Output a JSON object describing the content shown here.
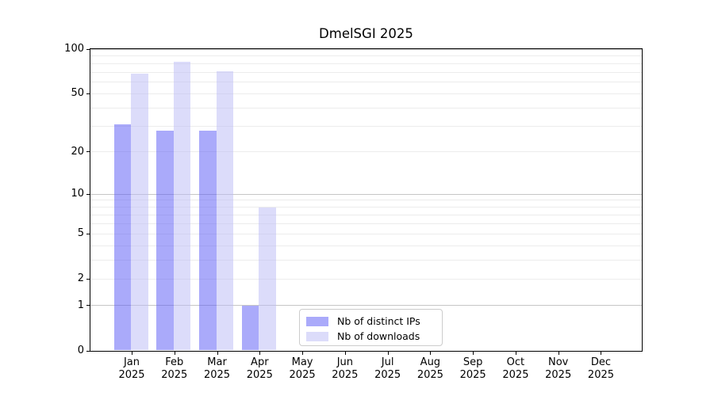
{
  "chart_data": {
    "type": "bar",
    "title": "DmelSGI 2025",
    "categories": [
      "Jan",
      "Feb",
      "Mar",
      "Apr",
      "May",
      "Jun",
      "Jul",
      "Aug",
      "Sep",
      "Oct",
      "Nov",
      "Dec"
    ],
    "category_year": "2025",
    "yscale": "log1p",
    "ylim": [
      0,
      100
    ],
    "yticks": [
      0,
      1,
      2,
      5,
      10,
      20,
      50,
      100
    ],
    "ytick_labels": [
      "0",
      "1",
      "2",
      "5",
      "10",
      "20",
      "50",
      "100"
    ],
    "major_gridlines": [
      1,
      10,
      100
    ],
    "minor_gridlines": [
      2,
      3,
      4,
      5,
      6,
      7,
      8,
      9,
      20,
      30,
      40,
      50,
      60,
      70,
      80,
      90
    ],
    "grid": "on",
    "legend_position": "lower-center-inside",
    "series": [
      {
        "name": "Nb of distinct IPs",
        "color": "rgba(85,85,245,0.5)",
        "solid_color": "#aaaafa",
        "values": [
          31,
          28,
          28,
          1,
          0,
          0,
          0,
          0,
          0,
          0,
          0,
          0
        ]
      },
      {
        "name": "Nb of downloads",
        "color": "rgba(185,185,245,0.5)",
        "solid_color": "#dcdcfa",
        "values": [
          68,
          82,
          71,
          8,
          0,
          0,
          0,
          0,
          0,
          0,
          0,
          0
        ]
      }
    ]
  }
}
